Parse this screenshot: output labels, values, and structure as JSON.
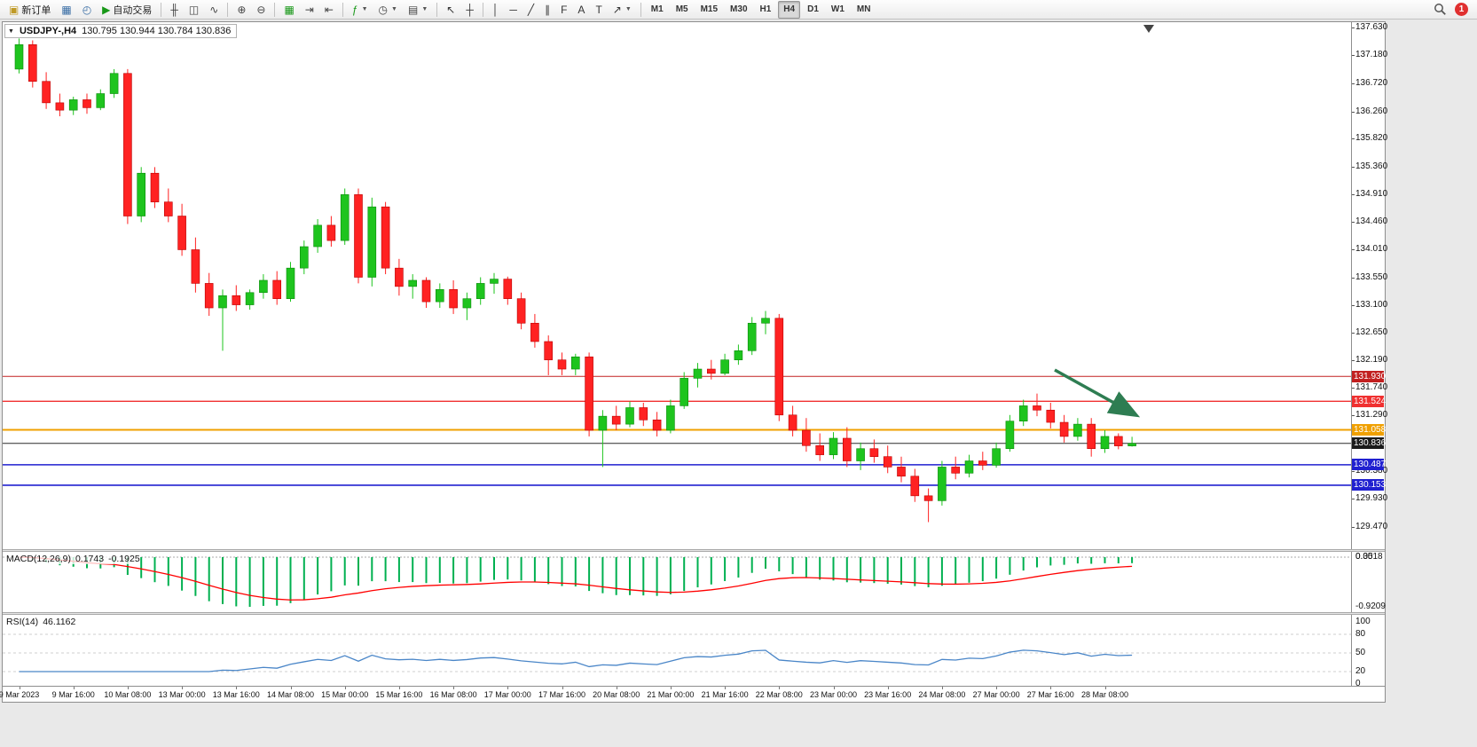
{
  "toolbar": {
    "notification_count": "1",
    "groups": [
      {
        "name": "trade",
        "items": [
          {
            "name": "new-order-button",
            "icon": "new-order-icon",
            "glyph": "▣",
            "color": "#c09a26",
            "label": "新订单"
          },
          {
            "name": "chart-window-button",
            "icon": "chart-window-icon",
            "glyph": "▦",
            "color": "#3a6ea5"
          },
          {
            "name": "strategy-tester-button",
            "icon": "strategy-tester-icon",
            "glyph": "◴",
            "color": "#3a6ea5"
          },
          {
            "name": "autotrading-button",
            "icon": "autotrading-play-icon",
            "glyph": "▶",
            "color": "#189818",
            "label": "自动交易"
          }
        ]
      },
      {
        "name": "chart-type",
        "items": [
          {
            "name": "bar-chart-button",
            "icon": "bar-chart-icon",
            "glyph": "╫",
            "color": "#444"
          },
          {
            "name": "candlestick-chart-button",
            "icon": "candlestick-icon",
            "glyph": "◫",
            "color": "#444"
          },
          {
            "name": "line-chart-button",
            "icon": "line-chart-icon",
            "glyph": "∿",
            "color": "#444"
          }
        ]
      },
      {
        "name": "zoom",
        "items": [
          {
            "name": "zoom-in-button",
            "icon": "zoom-in-icon",
            "glyph": "⊕",
            "color": "#444"
          },
          {
            "name": "zoom-out-button",
            "icon": "zoom-out-icon",
            "glyph": "⊖",
            "color": "#444"
          }
        ]
      },
      {
        "name": "window-tools",
        "items": [
          {
            "name": "tile-windows-button",
            "icon": "tile-windows-icon",
            "glyph": "▦",
            "color": "#189818"
          },
          {
            "name": "auto-scroll-button",
            "icon": "auto-scroll-icon",
            "glyph": "⇥",
            "color": "#444"
          },
          {
            "name": "chart-shift-button",
            "icon": "chart-shift-icon",
            "glyph": "⇤",
            "color": "#444"
          }
        ]
      },
      {
        "name": "insert",
        "items": [
          {
            "name": "indicators-button",
            "icon": "indicators-icon",
            "glyph": "ƒ",
            "color": "#189818",
            "dropdown": true
          },
          {
            "name": "periods-button",
            "icon": "periods-clock-icon",
            "glyph": "◷",
            "color": "#444",
            "dropdown": true
          },
          {
            "name": "templates-button",
            "icon": "templates-icon",
            "glyph": "▤",
            "color": "#444",
            "dropdown": true
          }
        ]
      },
      {
        "name": "cursor-tools",
        "items": [
          {
            "name": "cursor-button",
            "icon": "cursor-arrow-icon",
            "glyph": "↖",
            "color": "#333"
          },
          {
            "name": "crosshair-button",
            "icon": "crosshair-icon",
            "glyph": "┼",
            "color": "#333"
          }
        ]
      },
      {
        "name": "line-studies",
        "items": [
          {
            "name": "vertical-line-button",
            "icon": "vertical-line-icon",
            "glyph": "│",
            "color": "#333"
          },
          {
            "name": "horizontal-line-button",
            "icon": "horizontal-line-icon",
            "glyph": "─",
            "color": "#333"
          },
          {
            "name": "trendline-button",
            "icon": "trendline-icon",
            "glyph": "╱",
            "color": "#333"
          },
          {
            "name": "channel-button",
            "icon": "channel-icon",
            "glyph": "∥",
            "color": "#333"
          },
          {
            "name": "fibonacci-button",
            "icon": "fibonacci-icon",
            "glyph": "F",
            "color": "#333"
          },
          {
            "name": "text-button",
            "icon": "text-icon",
            "glyph": "A",
            "color": "#333"
          },
          {
            "name": "text-label-button",
            "icon": "text-label-icon",
            "glyph": "T",
            "color": "#333"
          },
          {
            "name": "arrows-button",
            "icon": "arrows-icon",
            "glyph": "↗",
            "color": "#333",
            "dropdown": true
          }
        ]
      },
      {
        "name": "timeframes",
        "items": [
          {
            "name": "timeframe-m1-button",
            "label": "M1"
          },
          {
            "name": "timeframe-m5-button",
            "label": "M5"
          },
          {
            "name": "timeframe-m15-button",
            "label": "M15"
          },
          {
            "name": "timeframe-m30-button",
            "label": "M30"
          },
          {
            "name": "timeframe-h1-button",
            "label": "H1"
          },
          {
            "name": "timeframe-h4-button",
            "label": "H4",
            "active": true
          },
          {
            "name": "timeframe-d1-button",
            "label": "D1"
          },
          {
            "name": "timeframe-w1-button",
            "label": "W1"
          },
          {
            "name": "timeframe-mn-button",
            "label": "MN"
          }
        ]
      }
    ]
  },
  "chart": {
    "symbol_title": "USDJPY-,H4",
    "ohlc_text": "130.795 130.944 130.784 130.836",
    "price_axis": [
      "137.630",
      "137.180",
      "136.720",
      "136.260",
      "135.820",
      "135.360",
      "134.910",
      "134.460",
      "134.010",
      "133.550",
      "133.100",
      "132.650",
      "132.190",
      "131.740",
      "131.290",
      "130.380",
      "129.930",
      "129.470"
    ],
    "levels": [
      {
        "price": 131.93,
        "label": "131.930",
        "color": "#c22020",
        "width": 1
      },
      {
        "price": 131.524,
        "label": "131.524",
        "color": "#f03030",
        "width": 1.4
      },
      {
        "price": 131.058,
        "label": "131.058",
        "color": "#f0a000",
        "width": 2
      },
      {
        "price": 130.836,
        "label": "130.836",
        "color": "#2b2b2b",
        "width": 1,
        "current": true
      },
      {
        "price": 130.487,
        "label": "130.487",
        "color": "#2020d0",
        "width": 1.6
      },
      {
        "price": 130.153,
        "label": "130.153",
        "color": "#2020d0",
        "width": 1.6
      }
    ],
    "annotation_arrow": {
      "color": "#2e7d52"
    },
    "time_labels": [
      "9 Mar 2023",
      "9 Mar 16:00",
      "10 Mar 08:00",
      "13 Mar 00:00",
      "13 Mar 16:00",
      "14 Mar 08:00",
      "15 Mar 00:00",
      "15 Mar 16:00",
      "16 Mar 08:00",
      "17 Mar 00:00",
      "17 Mar 16:00",
      "20 Mar 08:00",
      "21 Mar 00:00",
      "21 Mar 16:00",
      "22 Mar 08:00",
      "23 Mar 00:00",
      "23 Mar 16:00",
      "24 Mar 08:00",
      "27 Mar 00:00",
      "27 Mar 16:00",
      "28 Mar 08:00"
    ]
  },
  "chart_data": {
    "type": "candlestick",
    "symbol": "USDJPY",
    "timeframe": "H4",
    "price_min": 129.47,
    "price_max": 137.63,
    "up_color": "#1ec41e",
    "down_color": "#ff2222",
    "candles": [
      [
        136.95,
        137.45,
        136.88,
        137.35
      ],
      [
        137.35,
        137.42,
        136.65,
        136.75
      ],
      [
        136.75,
        136.9,
        136.3,
        136.4
      ],
      [
        136.4,
        136.55,
        136.18,
        136.28
      ],
      [
        136.28,
        136.5,
        136.2,
        136.45
      ],
      [
        136.45,
        136.55,
        136.22,
        136.32
      ],
      [
        136.32,
        136.62,
        136.28,
        136.55
      ],
      [
        136.55,
        136.95,
        136.48,
        136.88
      ],
      [
        136.88,
        136.95,
        134.42,
        134.55
      ],
      [
        134.55,
        135.35,
        134.45,
        135.25
      ],
      [
        135.25,
        135.35,
        134.68,
        134.78
      ],
      [
        134.78,
        135.0,
        134.45,
        134.55
      ],
      [
        134.55,
        134.75,
        133.9,
        134.0
      ],
      [
        134.0,
        134.2,
        133.3,
        133.45
      ],
      [
        133.45,
        133.62,
        132.92,
        133.05
      ],
      [
        133.05,
        133.35,
        132.35,
        133.25
      ],
      [
        133.25,
        133.42,
        133.0,
        133.1
      ],
      [
        133.1,
        133.35,
        133.02,
        133.3
      ],
      [
        133.3,
        133.6,
        133.2,
        133.5
      ],
      [
        133.5,
        133.65,
        133.1,
        133.2
      ],
      [
        133.2,
        133.8,
        133.15,
        133.7
      ],
      [
        133.7,
        134.15,
        133.6,
        134.05
      ],
      [
        134.05,
        134.5,
        133.95,
        134.4
      ],
      [
        134.4,
        134.55,
        134.05,
        134.15
      ],
      [
        134.15,
        135.0,
        134.08,
        134.9
      ],
      [
        134.9,
        135.0,
        133.45,
        133.55
      ],
      [
        133.55,
        134.85,
        133.4,
        134.7
      ],
      [
        134.7,
        134.78,
        133.6,
        133.7
      ],
      [
        133.7,
        133.85,
        133.25,
        133.4
      ],
      [
        133.4,
        133.6,
        133.2,
        133.5
      ],
      [
        133.5,
        133.55,
        133.05,
        133.15
      ],
      [
        133.15,
        133.45,
        133.05,
        133.35
      ],
      [
        133.35,
        133.5,
        132.95,
        133.05
      ],
      [
        133.05,
        133.3,
        132.85,
        133.2
      ],
      [
        133.2,
        133.55,
        133.1,
        133.45
      ],
      [
        133.45,
        133.62,
        133.28,
        133.52
      ],
      [
        133.52,
        133.56,
        133.1,
        133.2
      ],
      [
        133.2,
        133.3,
        132.7,
        132.8
      ],
      [
        132.8,
        132.95,
        132.4,
        132.5
      ],
      [
        132.5,
        132.6,
        131.95,
        132.2
      ],
      [
        132.2,
        132.32,
        131.95,
        132.05
      ],
      [
        132.05,
        132.3,
        131.95,
        132.25
      ],
      [
        132.25,
        132.32,
        130.95,
        131.05
      ],
      [
        131.05,
        131.38,
        130.45,
        131.28
      ],
      [
        131.28,
        131.45,
        131.05,
        131.15
      ],
      [
        131.15,
        131.52,
        131.1,
        131.42
      ],
      [
        131.42,
        131.5,
        131.12,
        131.22
      ],
      [
        131.22,
        131.35,
        130.95,
        131.05
      ],
      [
        131.05,
        131.55,
        131.0,
        131.45
      ],
      [
        131.45,
        132.0,
        131.4,
        131.9
      ],
      [
        131.9,
        132.15,
        131.75,
        132.05
      ],
      [
        132.05,
        132.2,
        131.88,
        131.98
      ],
      [
        131.98,
        132.3,
        131.95,
        132.2
      ],
      [
        132.2,
        132.45,
        132.12,
        132.35
      ],
      [
        132.35,
        132.9,
        132.28,
        132.8
      ],
      [
        132.8,
        133.0,
        132.62,
        132.88
      ],
      [
        132.88,
        132.95,
        131.2,
        131.3
      ],
      [
        131.3,
        131.45,
        130.95,
        131.05
      ],
      [
        131.05,
        131.25,
        130.7,
        130.8
      ],
      [
        130.8,
        131.0,
        130.55,
        130.65
      ],
      [
        130.65,
        131.02,
        130.58,
        130.92
      ],
      [
        130.92,
        131.1,
        130.45,
        130.55
      ],
      [
        130.55,
        130.85,
        130.4,
        130.75
      ],
      [
        130.75,
        130.9,
        130.52,
        130.62
      ],
      [
        130.62,
        130.8,
        130.35,
        130.45
      ],
      [
        130.45,
        130.62,
        130.2,
        130.3
      ],
      [
        130.3,
        130.42,
        129.88,
        129.98
      ],
      [
        129.98,
        130.1,
        129.55,
        129.9
      ],
      [
        129.9,
        130.55,
        129.82,
        130.45
      ],
      [
        130.45,
        130.62,
        130.25,
        130.35
      ],
      [
        130.35,
        130.65,
        130.28,
        130.55
      ],
      [
        130.55,
        130.7,
        130.4,
        130.48
      ],
      [
        130.48,
        130.85,
        130.44,
        130.75
      ],
      [
        130.75,
        131.3,
        130.7,
        131.2
      ],
      [
        131.2,
        131.55,
        131.12,
        131.45
      ],
      [
        131.45,
        131.65,
        131.28,
        131.38
      ],
      [
        131.38,
        131.5,
        131.08,
        131.18
      ],
      [
        131.18,
        131.3,
        130.85,
        130.95
      ],
      [
        130.95,
        131.25,
        130.88,
        131.15
      ],
      [
        131.15,
        131.25,
        130.62,
        130.75
      ],
      [
        130.75,
        131.05,
        130.68,
        130.95
      ],
      [
        130.95,
        131.0,
        130.74,
        130.795
      ],
      [
        130.795,
        130.944,
        130.784,
        130.836
      ]
    ]
  },
  "macd": {
    "label": "MACD(12,26,9)",
    "value_main": "0.1743",
    "value_signal": "-0.1925",
    "axis_max": "0.3518",
    "axis_zero": "0.00",
    "axis_min": "-0.9209",
    "histogram_color": "#00b050",
    "signal_color": "#ff0000"
  },
  "rsi": {
    "label": "RSI(14)",
    "value": "46.1162",
    "axis": [
      "100",
      "80",
      "50",
      "20",
      "0"
    ],
    "axis_values": [
      100,
      80,
      50,
      20,
      0
    ],
    "line_color": "#4a86c8",
    "level_lines": [
      80,
      50,
      20
    ]
  }
}
